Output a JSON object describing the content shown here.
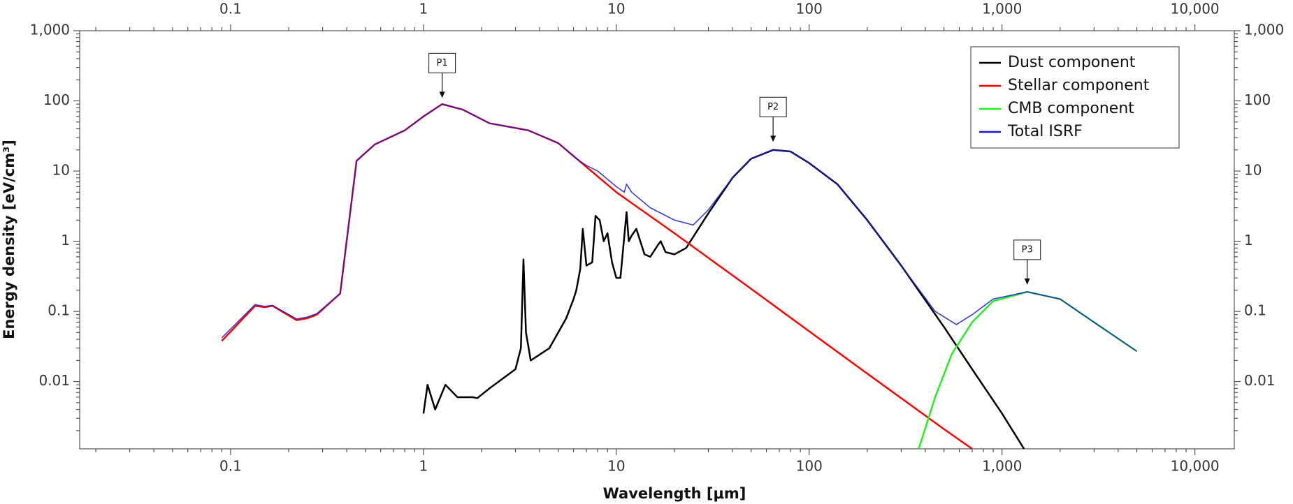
{
  "chart_data": {
    "type": "line",
    "x_label": "Wavelength [μm]",
    "y_label": "Energy density [eV/cm³]",
    "xscale": "log",
    "yscale": "log",
    "minor_ticks": true,
    "legend": "upper right",
    "xlim": [
      0.0165,
      16000
    ],
    "ylim": [
      0.0011,
      1000
    ],
    "xticks": [
      0.1,
      1,
      10,
      100,
      {
        "value": 1000,
        "label": "1,000"
      },
      {
        "value": 10000,
        "label": "10,000"
      }
    ],
    "yticks": [
      0.01,
      0.1,
      1,
      10,
      100,
      {
        "value": 1000,
        "label": "1,000"
      }
    ],
    "series": [
      {
        "name": "Dust component",
        "color": "#000000",
        "width": 2.5,
        "x": [
          1.0,
          1.05,
          1.15,
          1.3,
          1.5,
          1.8,
          1.9,
          2.2,
          3.0,
          3.2,
          3.3,
          3.4,
          3.6,
          4.5,
          5.5,
          6.0,
          6.2,
          6.5,
          6.7,
          7.0,
          7.5,
          7.8,
          8.2,
          8.6,
          9.0,
          9.5,
          10,
          10.5,
          11.3,
          11.6,
          12.0,
          12.7,
          14,
          15,
          16.5,
          17,
          18,
          20,
          23,
          30,
          40,
          50,
          65,
          80,
          100,
          140,
          200,
          300,
          500,
          700,
          1000,
          1300
        ],
        "values": [
          0.0035,
          0.009,
          0.004,
          0.009,
          0.006,
          0.006,
          0.0058,
          0.008,
          0.015,
          0.03,
          0.55,
          0.05,
          0.02,
          0.03,
          0.08,
          0.15,
          0.2,
          0.4,
          1.5,
          0.45,
          0.5,
          2.3,
          2.0,
          1.0,
          1.3,
          0.5,
          0.3,
          0.3,
          2.6,
          1.0,
          1.2,
          1.5,
          0.65,
          0.6,
          0.9,
          1.0,
          0.7,
          0.65,
          0.8,
          2.5,
          8,
          15,
          20,
          19,
          13,
          6.5,
          2,
          0.45,
          0.06,
          0.015,
          0.0035,
          0.0011
        ]
      },
      {
        "name": "Stellar component",
        "color": "#ff0000",
        "width": 2.5,
        "x": [
          0.09,
          0.134,
          0.15,
          0.165,
          0.22,
          0.25,
          0.28,
          0.37,
          0.45,
          0.56,
          0.8,
          1.0,
          1.25,
          1.6,
          2.2,
          3.5,
          5,
          10,
          20,
          50,
          100,
          200,
          500,
          700
        ],
        "values": [
          0.038,
          0.12,
          0.115,
          0.12,
          0.075,
          0.08,
          0.09,
          0.18,
          14,
          24,
          38,
          60,
          90,
          75,
          48,
          38,
          25,
          5,
          1.3,
          0.21,
          0.052,
          0.013,
          0.0021,
          0.0011
        ]
      },
      {
        "name": "CMB component",
        "color": "#22ee22",
        "width": 2.5,
        "x": [
          370,
          450,
          550,
          700,
          900,
          1350,
          2000,
          3000,
          5000
        ],
        "values": [
          0.0011,
          0.006,
          0.025,
          0.07,
          0.14,
          0.19,
          0.15,
          0.07,
          0.027
        ]
      },
      {
        "name": "Total ISRF",
        "color": "#1a1acc",
        "width": 1.6,
        "x": [
          0.09,
          0.134,
          0.15,
          0.165,
          0.22,
          0.25,
          0.28,
          0.37,
          0.45,
          0.56,
          0.8,
          1.0,
          1.25,
          1.6,
          2.2,
          3.5,
          5,
          6.2,
          7,
          8,
          10,
          11,
          11.3,
          12,
          15,
          20,
          25,
          30,
          40,
          50,
          65,
          80,
          100,
          140,
          200,
          300,
          450,
          580,
          700,
          900,
          1350,
          2000,
          3000,
          5000
        ],
        "values": [
          0.042,
          0.125,
          0.118,
          0.122,
          0.078,
          0.083,
          0.093,
          0.18,
          14,
          24,
          38,
          60,
          90,
          75,
          48,
          38,
          25,
          15,
          12,
          10,
          6,
          5,
          6.5,
          5,
          3,
          2,
          1.7,
          2.8,
          8,
          15,
          20,
          19,
          13,
          6.5,
          2,
          0.45,
          0.1,
          0.065,
          0.09,
          0.15,
          0.19,
          0.15,
          0.07,
          0.027
        ]
      }
    ],
    "annotations": [
      {
        "text": "P1",
        "x": 1.25,
        "y": 110
      },
      {
        "text": "P2",
        "x": 65,
        "y": 26
      },
      {
        "text": "P3",
        "x": 1350,
        "y": 0.24
      }
    ]
  }
}
